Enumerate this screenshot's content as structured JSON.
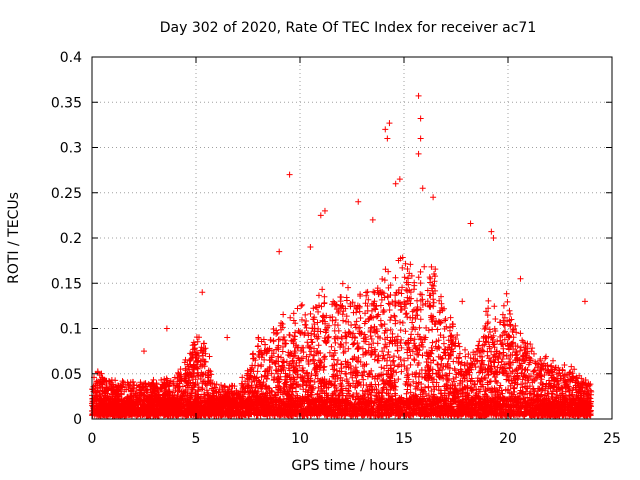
{
  "chart_data": {
    "type": "scatter",
    "title": "Day 302 of 2020, Rate Of TEC Index for receiver ac71",
    "xlabel": "GPS time / hours",
    "ylabel": "ROTI / TECUs",
    "xlim": [
      0,
      25
    ],
    "ylim": [
      0,
      0.4
    ],
    "xticks": [
      0,
      5,
      10,
      15,
      20,
      25
    ],
    "yticks": [
      0,
      0.05,
      0.1,
      0.15,
      0.2,
      0.25,
      0.3,
      0.35,
      0.4
    ],
    "xtick_labels": [
      "0",
      "5",
      "10",
      "15",
      "20",
      "25"
    ],
    "ytick_labels": [
      "0",
      "0.05",
      "0.1",
      "0.15",
      "0.2",
      "0.25",
      "0.3",
      "0.35",
      "0.4"
    ],
    "grid": true,
    "marker": "+",
    "color": "#ff0000",
    "envelope": {
      "x": [
        0.0,
        0.3,
        1.0,
        2.0,
        3.0,
        4.0,
        4.6,
        5.0,
        5.5,
        6.0,
        7.0,
        7.5,
        8.0,
        8.5,
        9.0,
        9.5,
        10.0,
        10.5,
        11.0,
        11.5,
        12.0,
        12.5,
        13.0,
        13.5,
        14.0,
        14.5,
        15.0,
        15.5,
        16.0,
        16.5,
        17.0,
        17.5,
        18.0,
        18.5,
        19.0,
        19.5,
        20.0,
        20.5,
        21.0,
        21.5,
        22.0,
        22.5,
        23.0,
        23.5,
        24.0
      ],
      "y": [
        0.04,
        0.045,
        0.035,
        0.035,
        0.035,
        0.04,
        0.06,
        0.085,
        0.07,
        0.03,
        0.03,
        0.05,
        0.08,
        0.08,
        0.1,
        0.1,
        0.12,
        0.11,
        0.13,
        0.11,
        0.13,
        0.14,
        0.12,
        0.14,
        0.15,
        0.16,
        0.17,
        0.15,
        0.16,
        0.15,
        0.12,
        0.08,
        0.07,
        0.07,
        0.12,
        0.1,
        0.12,
        0.09,
        0.08,
        0.06,
        0.06,
        0.05,
        0.05,
        0.045,
        0.03
      ]
    },
    "outliers": {
      "x": [
        9.5,
        14.1,
        14.2,
        14.3,
        14.6,
        14.8,
        15.7,
        15.8,
        15.8,
        15.7,
        15.9,
        16.4,
        12.8,
        11.2,
        11.0,
        18.2,
        19.2,
        19.3,
        3.6,
        2.5,
        5.3,
        6.5,
        9.0,
        13.5,
        10.5,
        17.8,
        23.7,
        20.6
      ],
      "y": [
        0.27,
        0.32,
        0.31,
        0.327,
        0.26,
        0.265,
        0.357,
        0.332,
        0.31,
        0.293,
        0.255,
        0.245,
        0.24,
        0.23,
        0.225,
        0.216,
        0.207,
        0.2,
        0.1,
        0.075,
        0.14,
        0.09,
        0.185,
        0.22,
        0.19,
        0.13,
        0.13,
        0.155
      ]
    }
  }
}
